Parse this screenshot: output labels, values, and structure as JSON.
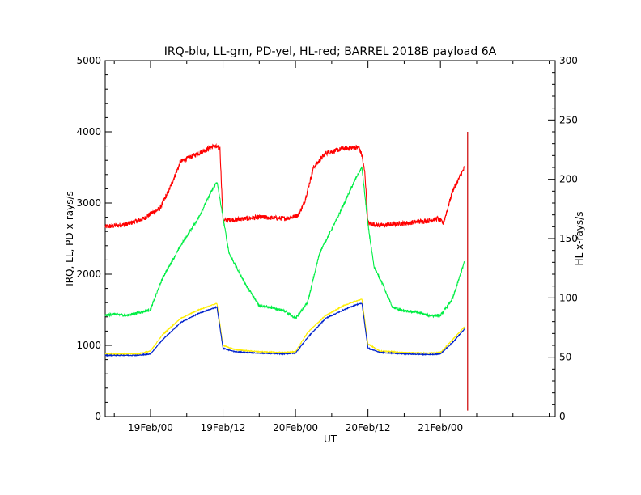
{
  "chart_data": {
    "type": "line",
    "title": "IRQ-blu, LL-grn, PD-yel, HL-red; BARREL 2018B payload 6A",
    "xlabel": "UT",
    "ylabel_left": "IRQ, LL, PD x-rays/s",
    "ylabel_right": "HL x-rays/s",
    "x_unit": "hours since 19Feb/00 UT",
    "xlim": [
      -7.5,
      67
    ],
    "ylim_left": [
      0,
      5000
    ],
    "ylim_right": [
      0,
      300
    ],
    "x_ticks": [
      {
        "x": 0,
        "label": "19Feb/00"
      },
      {
        "x": 12,
        "label": "19Feb/12"
      },
      {
        "x": 24,
        "label": "20Feb/00"
      },
      {
        "x": 36,
        "label": "20Feb/12"
      },
      {
        "x": 48,
        "label": "21Feb/00"
      }
    ],
    "y_ticks_left": [
      "0",
      "1000",
      "2000",
      "3000",
      "4000",
      "5000"
    ],
    "y_ticks_right": [
      "0",
      "50",
      "100",
      "150",
      "200",
      "250",
      "300"
    ],
    "grid": false,
    "series": [
      {
        "name": "HL",
        "axis": "right",
        "color": "#ff0000",
        "noise": 2.0,
        "x": [
          -7.5,
          -4,
          -1,
          0,
          1.5,
          3,
          5,
          8,
          10.5,
          11,
          11.5,
          12,
          14,
          18,
          22,
          23.5,
          24.5,
          25.5,
          27,
          29,
          32,
          34.5,
          35,
          35.5,
          36,
          38,
          42,
          46,
          47.5,
          48.5,
          50,
          52
        ],
        "y": [
          160,
          162,
          167,
          171,
          175,
          190,
          215,
          222,
          228,
          227,
          226,
          165,
          166,
          168,
          167,
          168,
          170,
          181,
          210,
          222,
          226,
          227,
          220,
          205,
          163,
          161,
          163,
          165,
          167,
          163,
          190,
          210
        ]
      },
      {
        "name": "LL",
        "axis": "left",
        "color": "#00ee44",
        "noise": 18,
        "x": [
          -7.5,
          -6,
          -4,
          -2,
          0,
          2,
          5,
          8,
          10,
          11,
          12,
          13,
          14.5,
          16,
          18,
          20,
          22,
          24,
          26,
          28,
          31,
          34,
          35,
          36,
          37,
          38.5,
          40,
          42,
          44,
          46,
          48,
          50,
          52
        ],
        "y": [
          1420,
          1440,
          1420,
          1460,
          1500,
          1950,
          2400,
          2800,
          3150,
          3300,
          2800,
          2300,
          2050,
          1820,
          1560,
          1530,
          1490,
          1380,
          1600,
          2300,
          2800,
          3350,
          3500,
          2700,
          2100,
          1850,
          1540,
          1480,
          1470,
          1420,
          1420,
          1650,
          2180
        ]
      },
      {
        "name": "PD",
        "axis": "left",
        "color": "#ffee00",
        "noise": 6,
        "x": [
          -7.5,
          -2,
          0,
          2,
          5,
          8,
          10,
          11,
          12,
          14,
          18,
          22,
          24,
          26,
          29,
          32,
          34,
          35,
          36,
          38,
          42,
          46,
          48,
          50,
          52
        ],
        "y": [
          880,
          880,
          920,
          1150,
          1380,
          1500,
          1560,
          1590,
          1000,
          940,
          910,
          900,
          910,
          1180,
          1420,
          1560,
          1620,
          1650,
          1020,
          920,
          900,
          890,
          900,
          1080,
          1260
        ]
      },
      {
        "name": "IRQ",
        "axis": "left",
        "color": "#0022cc",
        "noise": 6,
        "x": [
          -7.5,
          -2,
          0,
          2,
          5,
          8,
          10,
          11,
          12,
          14,
          18,
          22,
          24,
          26,
          29,
          32,
          34,
          35,
          36,
          38,
          42,
          46,
          48,
          50,
          52
        ],
        "y": [
          860,
          860,
          880,
          1080,
          1320,
          1450,
          1510,
          1540,
          960,
          910,
          890,
          880,
          890,
          1110,
          1380,
          1500,
          1570,
          1590,
          960,
          900,
          880,
          870,
          880,
          1040,
          1230
        ]
      }
    ],
    "spike": {
      "name": "HL",
      "axis": "right",
      "color": "#cc0000",
      "x": 52.5,
      "y": [
        5,
        240
      ]
    }
  }
}
